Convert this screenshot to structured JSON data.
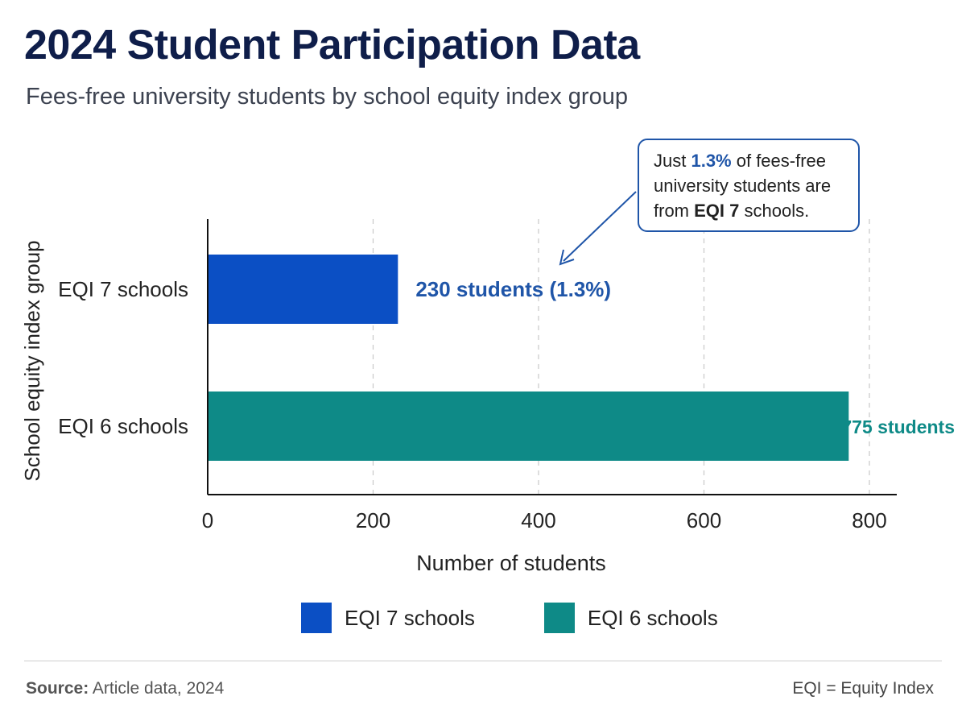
{
  "colors": {
    "eqi7": "#0b4fc4",
    "eqi6": "#0e8a87",
    "accent": "#1f55a8",
    "title": "#0f1e4a"
  },
  "chart_data": {
    "type": "bar",
    "orientation": "horizontal",
    "title": "2024 Student Participation Data",
    "subtitle": "Fees-free university students by school equity index group",
    "xlabel": "Number of students",
    "ylabel": "School equity index group",
    "categories": [
      "EQI 7 schools",
      "EQI 6 schools"
    ],
    "values": [
      230,
      775
    ],
    "data_labels": [
      "230 students (1.3%)",
      "775 students"
    ],
    "xlim": [
      0,
      800
    ],
    "xticks": [
      0,
      200,
      400,
      600,
      800
    ],
    "grid": "vertical dashed",
    "legend": [
      "EQI 7 schools",
      "EQI 6 schools"
    ],
    "legend_position": "bottom-center",
    "annotation": {
      "prefix": "Just ",
      "highlight": "1.3%",
      "middle": " of fees-free university students are from ",
      "bold": "EQI 7",
      "suffix": " schools."
    }
  },
  "footer": {
    "source_label": "Source:",
    "source_text": " Article data, 2024",
    "note": "EQI = Equity Index"
  }
}
